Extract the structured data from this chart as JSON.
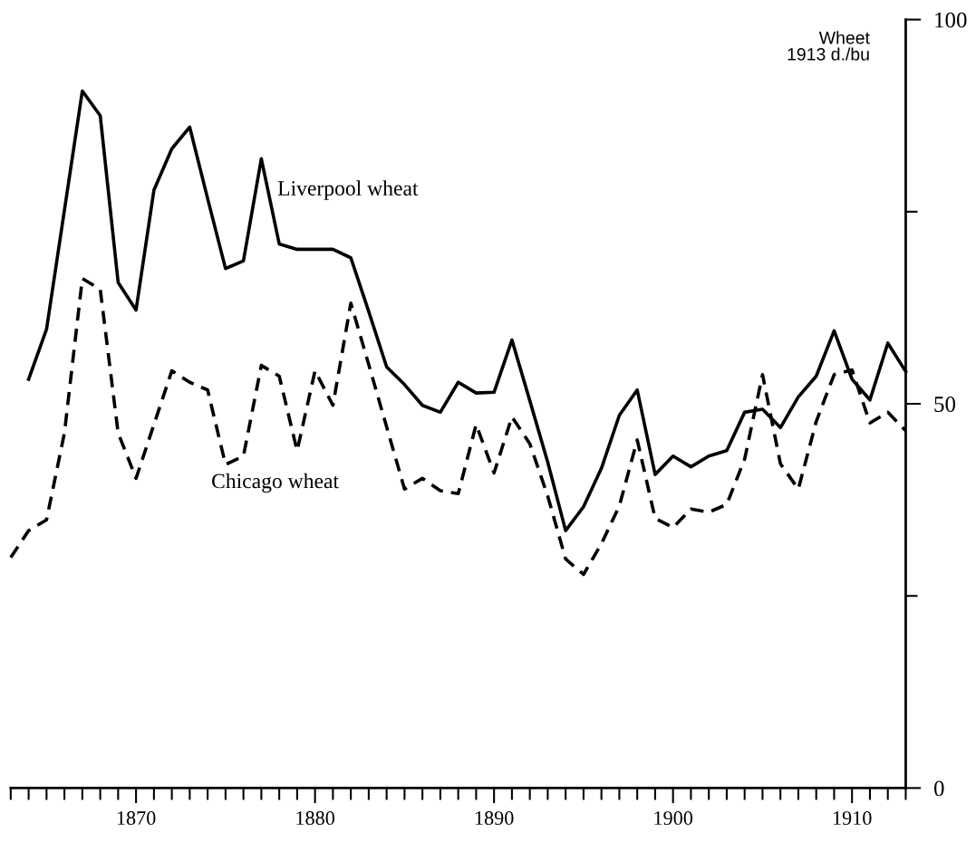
{
  "chart_data": {
    "type": "line",
    "ylabel": "Wheet\n1913 d./bu",
    "x": [
      1864,
      1865,
      1866,
      1867,
      1868,
      1869,
      1870,
      1871,
      1872,
      1873,
      1874,
      1875,
      1876,
      1877,
      1878,
      1879,
      1880,
      1881,
      1882,
      1883,
      1884,
      1885,
      1886,
      1887,
      1888,
      1889,
      1890,
      1891,
      1892,
      1893,
      1894,
      1895,
      1896,
      1897,
      1898,
      1899,
      1900,
      1901,
      1902,
      1903,
      1904,
      1905,
      1906,
      1907,
      1908,
      1909,
      1910,
      1911,
      1912,
      1913
    ],
    "series": [
      {
        "name": "Liverpool wheat",
        "color": "#000000",
        "line_style": "solid",
        "values": [
          53.2,
          59.7,
          75.2,
          90.7,
          87.5,
          65.8,
          62.2,
          77.8,
          83.2,
          86.0,
          76.7,
          67.6,
          68.6,
          81.9,
          70.8,
          70.1,
          70.1,
          70.1,
          69.0,
          62.0,
          54.8,
          52.5,
          49.8,
          48.9,
          52.8,
          51.4,
          51.5,
          58.3,
          50.4,
          42.4,
          33.5,
          36.6,
          41.6,
          48.5,
          51.8,
          40.8,
          43.2,
          41.8,
          43.2,
          43.9,
          48.9,
          49.3,
          46.9,
          50.9,
          53.6,
          59.5,
          53.2,
          50.5,
          57.9,
          54.2
        ]
      },
      {
        "name": "Chicago wheat",
        "color": "#000000",
        "line_style": "dashed",
        "x": [
          1863,
          1864,
          1865,
          1866,
          1867,
          1868,
          1869,
          1870,
          1871,
          1872,
          1873,
          1874,
          1875,
          1876,
          1877,
          1878,
          1879,
          1880,
          1881,
          1882,
          1883,
          1884,
          1885,
          1886,
          1887,
          1888,
          1889,
          1890,
          1891,
          1892,
          1893,
          1894,
          1895,
          1896,
          1897,
          1898,
          1899,
          1900,
          1901,
          1902,
          1903,
          1904,
          1905,
          1906,
          1907,
          1908,
          1909,
          1910,
          1911,
          1912,
          1913
        ],
        "values": [
          30.0,
          33.5,
          34.9,
          46.2,
          66.3,
          64.9,
          46.2,
          40.3,
          47.3,
          54.3,
          52.8,
          51.8,
          42.1,
          43.2,
          55.0,
          53.6,
          43.9,
          54.3,
          49.8,
          63.1,
          55.1,
          47.0,
          38.9,
          40.3,
          38.7,
          38.3,
          47.3,
          41.0,
          48.3,
          44.8,
          38.0,
          29.8,
          27.8,
          31.8,
          36.7,
          45.3,
          35.1,
          33.9,
          36.3,
          35.9,
          36.9,
          42.8,
          53.8,
          42.2,
          38.9,
          47.7,
          53.8,
          54.4,
          47.5,
          48.9,
          46.5
        ]
      }
    ],
    "xlim": [
      1863,
      1913
    ],
    "xticks": [
      {
        "value": 1863,
        "label": null
      },
      {
        "value": 1864,
        "label": null
      },
      {
        "value": 1865,
        "label": null
      },
      {
        "value": 1866,
        "label": null
      },
      {
        "value": 1867,
        "label": null
      },
      {
        "value": 1868,
        "label": null
      },
      {
        "value": 1869,
        "label": null
      },
      1870,
      {
        "value": 1871,
        "label": null
      },
      {
        "value": 1872,
        "label": null
      },
      {
        "value": 1873,
        "label": null
      },
      {
        "value": 1874,
        "label": null
      },
      {
        "value": 1875,
        "label": null
      },
      {
        "value": 1876,
        "label": null
      },
      {
        "value": 1877,
        "label": null
      },
      {
        "value": 1878,
        "label": null
      },
      {
        "value": 1879,
        "label": null
      },
      1880,
      {
        "value": 1881,
        "label": null
      },
      {
        "value": 1882,
        "label": null
      },
      {
        "value": 1883,
        "label": null
      },
      {
        "value": 1884,
        "label": null
      },
      {
        "value": 1885,
        "label": null
      },
      {
        "value": 1886,
        "label": null
      },
      {
        "value": 1887,
        "label": null
      },
      {
        "value": 1888,
        "label": null
      },
      {
        "value": 1889,
        "label": null
      },
      1890,
      {
        "value": 1891,
        "label": null
      },
      {
        "value": 1892,
        "label": null
      },
      {
        "value": 1893,
        "label": null
      },
      {
        "value": 1894,
        "label": null
      },
      {
        "value": 1895,
        "label": null
      },
      {
        "value": 1896,
        "label": null
      },
      {
        "value": 1897,
        "label": null
      },
      {
        "value": 1898,
        "label": null
      },
      {
        "value": 1899,
        "label": null
      },
      1900,
      {
        "value": 1901,
        "label": null
      },
      {
        "value": 1902,
        "label": null
      },
      {
        "value": 1903,
        "label": null
      },
      {
        "value": 1904,
        "label": null
      },
      {
        "value": 1905,
        "label": null
      },
      {
        "value": 1906,
        "label": null
      },
      {
        "value": 1907,
        "label": null
      },
      {
        "value": 1908,
        "label": null
      },
      {
        "value": 1909,
        "label": null
      },
      1910,
      {
        "value": 1911,
        "label": null
      },
      {
        "value": 1912,
        "label": null
      },
      {
        "value": 1913,
        "label": null
      }
    ],
    "ylim": [
      0,
      100
    ],
    "yticks": [
      0,
      {
        "value": 25,
        "label": null
      },
      50,
      {
        "value": 75,
        "label": null
      },
      100
    ],
    "grid": false,
    "legend": false,
    "marker": "none"
  }
}
